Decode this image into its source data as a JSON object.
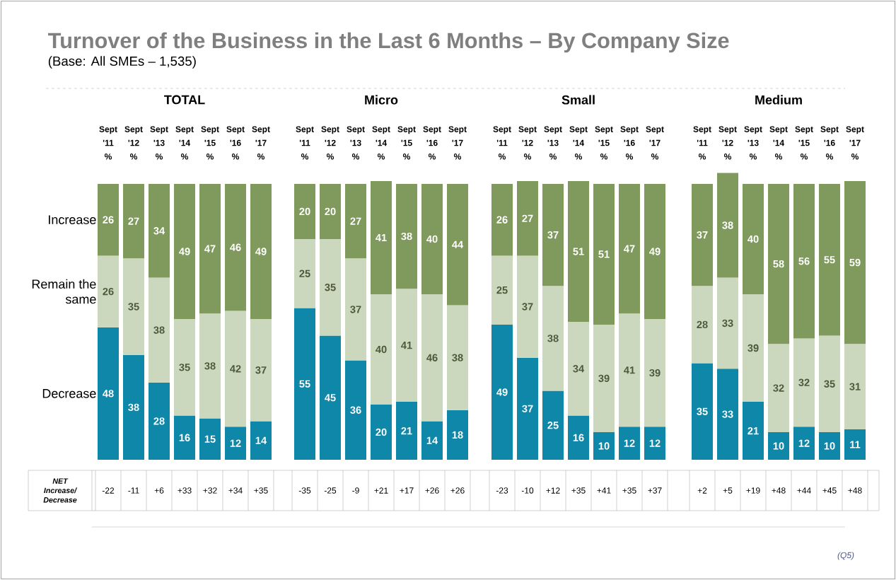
{
  "chart_data": [
    {
      "type": "other",
      "title": "Turnover of the Business in the Last 6 Months – By Company Size",
      "subtitle": "(Base: All SMEs – 1,535)",
      "annotations": [
        "NET Increase/ Decrease",
        "(Q5)"
      ]
    },
    {
      "type": "bar",
      "title": "TOTAL",
      "categories": [
        "Sept '11 %",
        "Sept '12 %",
        "Sept '13 %",
        "Sept '14 %",
        "Sept '15 %",
        "Sept '16 %",
        "Sept '17 %"
      ],
      "stacked": true,
      "data_labels": true,
      "series": [
        {
          "name": "Decrease",
          "color": "#0f87a8",
          "values": [
            48,
            38,
            28,
            16,
            15,
            12,
            14
          ]
        },
        {
          "name": "Remain the same",
          "color": "#ccd8bd",
          "values": [
            26,
            35,
            38,
            35,
            38,
            42,
            37
          ]
        },
        {
          "name": "Increase",
          "color": "#7f9a5c",
          "values": [
            26,
            27,
            34,
            49,
            47,
            46,
            49
          ]
        }
      ],
      "annotations": [
        "-22",
        "-11",
        "+6",
        "+33",
        "+32",
        "+34",
        "+35"
      ]
    },
    {
      "type": "bar",
      "title": "Micro",
      "categories": [
        "Sept '11 %",
        "Sept '12 %",
        "Sept '13 %",
        "Sept '14 %",
        "Sept '15 %",
        "Sept '16 %",
        "Sept '17 %"
      ],
      "stacked": true,
      "data_labels": true,
      "series": [
        {
          "color": "#0f87a8",
          "values": [
            55,
            45,
            36,
            20,
            21,
            14,
            18
          ]
        },
        {
          "color": "#ccd8bd",
          "values": [
            25,
            35,
            37,
            40,
            41,
            46,
            38
          ]
        },
        {
          "color": "#7f9a5c",
          "values": [
            20,
            20,
            27,
            41,
            38,
            40,
            44
          ]
        }
      ],
      "annotations": [
        "-35",
        "-25",
        "-9",
        "+21",
        "+17",
        "+26",
        "+26"
      ]
    },
    {
      "type": "bar",
      "title": "Small",
      "categories": [
        "Sept '11 %",
        "Sept '12 %",
        "Sept '13 %",
        "Sept '14 %",
        "Sept '15 %",
        "Sept '16 %",
        "Sept '17 %"
      ],
      "stacked": true,
      "data_labels": true,
      "series": [
        {
          "color": "#0f87a8",
          "values": [
            49,
            37,
            25,
            16,
            10,
            12,
            12
          ]
        },
        {
          "color": "#ccd8bd",
          "values": [
            25,
            37,
            38,
            34,
            39,
            41,
            39
          ]
        },
        {
          "color": "#7f9a5c",
          "values": [
            26,
            27,
            37,
            51,
            51,
            47,
            49
          ]
        }
      ],
      "annotations": [
        "-23",
        "-10",
        "+12",
        "+35",
        "+41",
        "+35",
        "+37"
      ]
    },
    {
      "type": "bar",
      "title": "Medium",
      "categories": [
        "Sept '11 %",
        "Sept '12 %",
        "Sept '13 %",
        "Sept '14 %",
        "Sept '15 %",
        "Sept '16 %",
        "Sept '17 %"
      ],
      "stacked": true,
      "data_labels": true,
      "series": [
        {
          "color": "#0f87a8",
          "values": [
            35,
            33,
            21,
            10,
            12,
            10,
            11
          ]
        },
        {
          "color": "#ccd8bd",
          "values": [
            28,
            33,
            39,
            32,
            32,
            35,
            31
          ]
        },
        {
          "color": "#7f9a5c",
          "values": [
            37,
            38,
            40,
            58,
            56,
            55,
            59
          ]
        }
      ],
      "annotations": [
        "+2",
        "+5",
        "+19",
        "+48",
        "+44",
        "+45",
        "+48"
      ]
    }
  ]
}
